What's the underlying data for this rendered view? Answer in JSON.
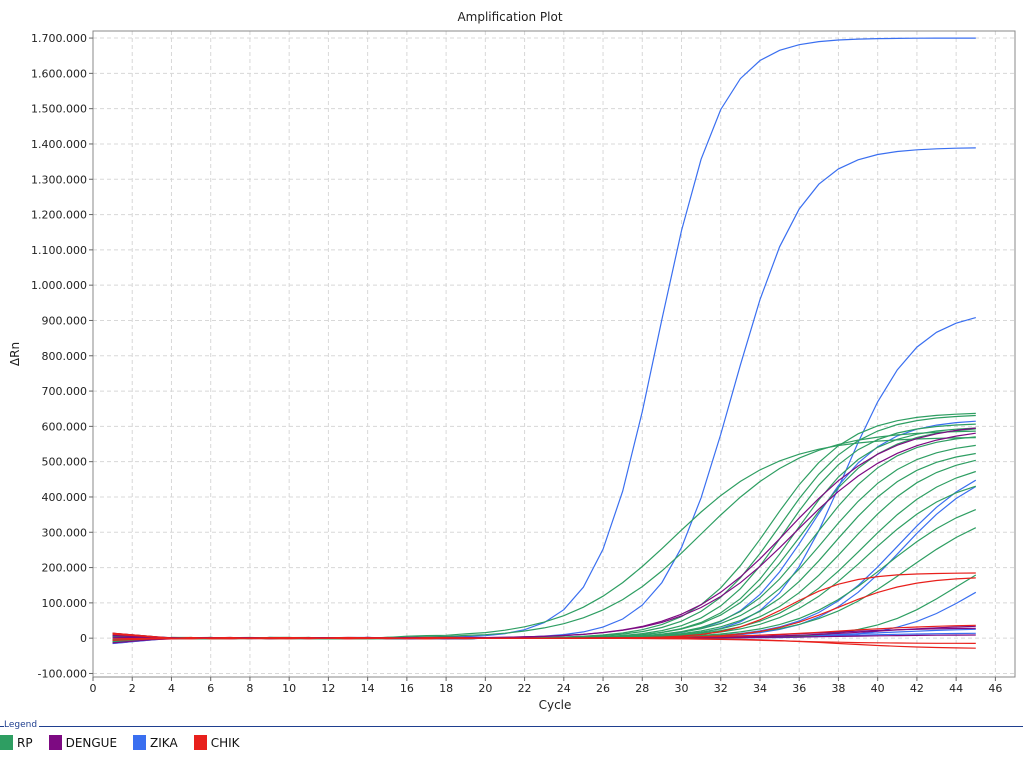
{
  "chart_data": {
    "type": "line",
    "title": "Amplification Plot",
    "xlabel": "Cycle",
    "ylabel": "ΔRn",
    "xlim": [
      0,
      47
    ],
    "ylim": [
      -110000,
      1720000
    ],
    "xticks": [
      0,
      2,
      4,
      6,
      8,
      10,
      12,
      14,
      16,
      18,
      20,
      22,
      24,
      26,
      28,
      30,
      32,
      34,
      36,
      38,
      40,
      42,
      44,
      46
    ],
    "yticks": [
      -100000,
      0,
      100000,
      200000,
      300000,
      400000,
      500000,
      600000,
      700000,
      800000,
      900000,
      1000000,
      1100000,
      1200000,
      1300000,
      1400000,
      1500000,
      1600000,
      1700000
    ],
    "ytick_labels": [
      "-100.000",
      "0",
      "100.000",
      "200.000",
      "300.000",
      "400.000",
      "500.000",
      "600.000",
      "700.000",
      "800.000",
      "900.000",
      "1.000.000",
      "1.100.000",
      "1.200.000",
      "1.300.000",
      "1.400.000",
      "1.500.000",
      "1.600.000",
      "1.700.000"
    ],
    "xtick_labels": [
      "0",
      "2",
      "4",
      "6",
      "8",
      "10",
      "12",
      "14",
      "16",
      "18",
      "20",
      "22",
      "24",
      "26",
      "28",
      "30",
      "32",
      "34",
      "36",
      "38",
      "40",
      "42",
      "44",
      "46"
    ],
    "grid": true,
    "legend_position": "bottom",
    "legend_title": "Legend",
    "legend": [
      {
        "name": "RP",
        "color": "#2e9e62"
      },
      {
        "name": "DENGUE",
        "color": "#7d0a82"
      },
      {
        "name": "ZIKA",
        "color": "#3a6ff0"
      },
      {
        "name": "CHIK",
        "color": "#e8201c"
      }
    ],
    "series_groups": [
      {
        "target": "ZIKA",
        "color": "#3a6ff0",
        "curves": [
          {
            "max": 1700000,
            "mid": 28.8,
            "slope": 1.6,
            "base": 0
          },
          {
            "max": 1390000,
            "mid": 32.6,
            "slope": 1.75,
            "base": 0
          },
          {
            "max": 930000,
            "mid": 38.3,
            "slope": 1.8,
            "base": 0
          },
          {
            "max": 620000,
            "mid": 36.5,
            "slope": 1.8,
            "base": 0
          },
          {
            "max": 520000,
            "mid": 41.0,
            "slope": 2.2,
            "base": 0
          },
          {
            "max": 500000,
            "mid": 41.2,
            "slope": 2.1,
            "base": 0
          },
          {
            "max": 260000,
            "mid": 45.0,
            "slope": 2.0,
            "base": 0
          },
          {
            "max": 30000,
            "mid": 40.0,
            "slope": 3.0,
            "base": 0
          },
          {
            "max": 15000,
            "mid": 38.0,
            "slope": 3.0,
            "base": 0
          }
        ]
      },
      {
        "target": "RP",
        "color": "#2e9e62",
        "curves": [
          {
            "max": 570000,
            "mid": 29.6,
            "slope": 2.7,
            "base": 0
          },
          {
            "max": 590000,
            "mid": 31.0,
            "slope": 2.7,
            "base": 0
          },
          {
            "max": 640000,
            "mid": 34.5,
            "slope": 2.0,
            "base": 0
          },
          {
            "max": 635000,
            "mid": 35.0,
            "slope": 2.0,
            "base": 0
          },
          {
            "max": 610000,
            "mid": 35.3,
            "slope": 1.9,
            "base": 0
          },
          {
            "max": 600000,
            "mid": 35.8,
            "slope": 1.9,
            "base": 0
          },
          {
            "max": 600000,
            "mid": 36.2,
            "slope": 2.0,
            "base": 0
          },
          {
            "max": 580000,
            "mid": 36.8,
            "slope": 2.0,
            "base": 0
          },
          {
            "max": 560000,
            "mid": 37.3,
            "slope": 2.1,
            "base": 0
          },
          {
            "max": 540000,
            "mid": 37.8,
            "slope": 2.1,
            "base": 0
          },
          {
            "max": 530000,
            "mid": 38.5,
            "slope": 2.2,
            "base": 0
          },
          {
            "max": 510000,
            "mid": 39.2,
            "slope": 2.3,
            "base": 0
          },
          {
            "max": 470000,
            "mid": 39.5,
            "slope": 2.3,
            "base": 0
          },
          {
            "max": 420000,
            "mid": 40.5,
            "slope": 2.4,
            "base": 0
          },
          {
            "max": 390000,
            "mid": 41.5,
            "slope": 2.5,
            "base": 0
          },
          {
            "max": 290000,
            "mid": 44.0,
            "slope": 2.1,
            "base": 0
          }
        ]
      },
      {
        "target": "DENGUE",
        "color": "#7d0a82",
        "curves": [
          {
            "max": 610000,
            "mid": 35.4,
            "slope": 2.6,
            "base": 0
          },
          {
            "max": 600000,
            "mid": 35.8,
            "slope": 2.7,
            "base": 0
          },
          {
            "max": 40000,
            "mid": 40.0,
            "slope": 3.0,
            "base": 0
          },
          {
            "max": 30000,
            "mid": 37.0,
            "slope": 3.0,
            "base": 0
          },
          {
            "max": 10000,
            "mid": 38.0,
            "slope": 3.0,
            "base": 0
          }
        ]
      },
      {
        "target": "CHIK",
        "color": "#e8201c",
        "curves": [
          {
            "max": 185000,
            "mid": 35.5,
            "slope": 1.6,
            "base": 0
          },
          {
            "max": 175000,
            "mid": 38.0,
            "slope": 1.9,
            "base": 0
          },
          {
            "max": 40000,
            "mid": 38.0,
            "slope": 3.0,
            "base": 0
          },
          {
            "max": -30000,
            "mid": 38.0,
            "slope": 2.5,
            "base": 0
          },
          {
            "max": -15000,
            "mid": 35.0,
            "slope": 2.5,
            "base": 0
          }
        ]
      }
    ]
  }
}
